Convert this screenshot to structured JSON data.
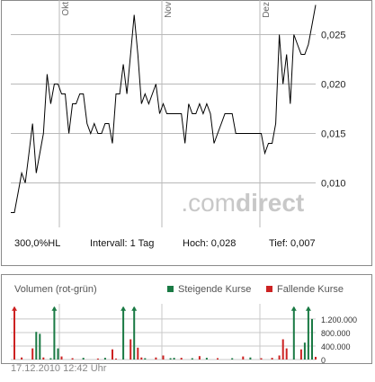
{
  "chart_data": [
    {
      "type": "line",
      "months": [
        "Okt",
        "Nov",
        "Dez"
      ],
      "y_ticks": [
        "0,025",
        "0,020",
        "0,015",
        "0,010"
      ],
      "ylim": [
        0.0055,
        0.0285
      ],
      "grid": true,
      "watermark": {
        "prefix": ".com",
        "suffix": "direct"
      },
      "stats": {
        "hl": "300,0%HL",
        "interval": "Intervall: 1 Tag",
        "high": "Hoch:  0,028",
        "low": "Tief:  0,007"
      },
      "series": [
        {
          "color": "#000000",
          "values": [
            0.007,
            0.007,
            0.009,
            0.011,
            0.01,
            0.013,
            0.016,
            0.011,
            0.013,
            0.015,
            0.021,
            0.018,
            0.02,
            0.02,
            0.019,
            0.019,
            0.015,
            0.018,
            0.018,
            0.019,
            0.019,
            0.016,
            0.015,
            0.016,
            0.015,
            0.015,
            0.016,
            0.016,
            0.014,
            0.019,
            0.019,
            0.022,
            0.019,
            0.023,
            0.027,
            0.023,
            0.018,
            0.019,
            0.018,
            0.019,
            0.02,
            0.017,
            0.018,
            0.017,
            0.017,
            0.017,
            0.017,
            0.017,
            0.014,
            0.018,
            0.017,
            0.017,
            0.018,
            0.017,
            0.018,
            0.017,
            0.014,
            0.015,
            0.016,
            0.017,
            0.017,
            0.017,
            0.015,
            0.015,
            0.015,
            0.015,
            0.015,
            0.015,
            0.015,
            0.015,
            0.013,
            0.014,
            0.014,
            0.016,
            0.025,
            0.02,
            0.023,
            0.018,
            0.025,
            0.024,
            0.023,
            0.023,
            0.024,
            0.026,
            0.028
          ]
        }
      ]
    },
    {
      "type": "bar",
      "title": "Volumen (rot-grün)",
      "legend": [
        {
          "name": "Steigende Kurse",
          "color": "#1a7a44"
        },
        {
          "name": "Fallende Kurse",
          "color": "#cc2222"
        }
      ],
      "y_ticks": [
        "1.200.000",
        "800.000",
        "400.000",
        "0"
      ],
      "ylim": [
        0,
        1650000
      ],
      "date": "17.12.2010 12:42 Uhr",
      "bars": [
        {
          "i": 1,
          "v": 1550000,
          "c": "fall",
          "arrow": true
        },
        {
          "i": 3,
          "v": 60000,
          "c": "fall"
        },
        {
          "i": 6,
          "v": 330000,
          "c": "fall"
        },
        {
          "i": 7,
          "v": 820000,
          "c": "rise"
        },
        {
          "i": 8,
          "v": 760000,
          "c": "rise"
        },
        {
          "i": 9,
          "v": 60000,
          "c": "fall"
        },
        {
          "i": 11,
          "v": 40000,
          "c": "rise"
        },
        {
          "i": 12,
          "v": 1550000,
          "c": "rise",
          "arrow": true
        },
        {
          "i": 13,
          "v": 330000,
          "c": "rise"
        },
        {
          "i": 14,
          "v": 90000,
          "c": "fall"
        },
        {
          "i": 17,
          "v": 40000,
          "c": "fall"
        },
        {
          "i": 20,
          "v": 50000,
          "c": "rise"
        },
        {
          "i": 24,
          "v": 30000,
          "c": "fall"
        },
        {
          "i": 26,
          "v": 50000,
          "c": "rise"
        },
        {
          "i": 28,
          "v": 300000,
          "c": "fall"
        },
        {
          "i": 29,
          "v": 30000,
          "c": "fall"
        },
        {
          "i": 31,
          "v": 1550000,
          "c": "rise",
          "arrow": true
        },
        {
          "i": 33,
          "v": 600000,
          "c": "fall"
        },
        {
          "i": 34,
          "v": 1550000,
          "c": "rise",
          "arrow": true
        },
        {
          "i": 35,
          "v": 350000,
          "c": "fall"
        },
        {
          "i": 36,
          "v": 60000,
          "c": "fall"
        },
        {
          "i": 37,
          "v": 40000,
          "c": "rise"
        },
        {
          "i": 40,
          "v": 60000,
          "c": "fall"
        },
        {
          "i": 42,
          "v": 120000,
          "c": "fall"
        },
        {
          "i": 44,
          "v": 40000,
          "c": "rise"
        },
        {
          "i": 45,
          "v": 50000,
          "c": "rise"
        },
        {
          "i": 47,
          "v": 50000,
          "c": "fall"
        },
        {
          "i": 50,
          "v": 40000,
          "c": "rise"
        },
        {
          "i": 52,
          "v": 100000,
          "c": "fall"
        },
        {
          "i": 54,
          "v": 50000,
          "c": "rise"
        },
        {
          "i": 57,
          "v": 40000,
          "c": "fall"
        },
        {
          "i": 61,
          "v": 40000,
          "c": "rise"
        },
        {
          "i": 64,
          "v": 90000,
          "c": "fall"
        },
        {
          "i": 66,
          "v": 60000,
          "c": "rise"
        },
        {
          "i": 69,
          "v": 40000,
          "c": "fall"
        },
        {
          "i": 72,
          "v": 50000,
          "c": "fall"
        },
        {
          "i": 74,
          "v": 120000,
          "c": "fall"
        },
        {
          "i": 75,
          "v": 600000,
          "c": "fall"
        },
        {
          "i": 76,
          "v": 330000,
          "c": "fall"
        },
        {
          "i": 78,
          "v": 1550000,
          "c": "rise",
          "arrow": true
        },
        {
          "i": 80,
          "v": 300000,
          "c": "fall"
        },
        {
          "i": 81,
          "v": 500000,
          "c": "rise"
        },
        {
          "i": 82,
          "v": 1550000,
          "c": "rise",
          "arrow": true
        },
        {
          "i": 83,
          "v": 1200000,
          "c": "rise"
        },
        {
          "i": 84,
          "v": 80000,
          "c": "fall"
        }
      ]
    }
  ]
}
